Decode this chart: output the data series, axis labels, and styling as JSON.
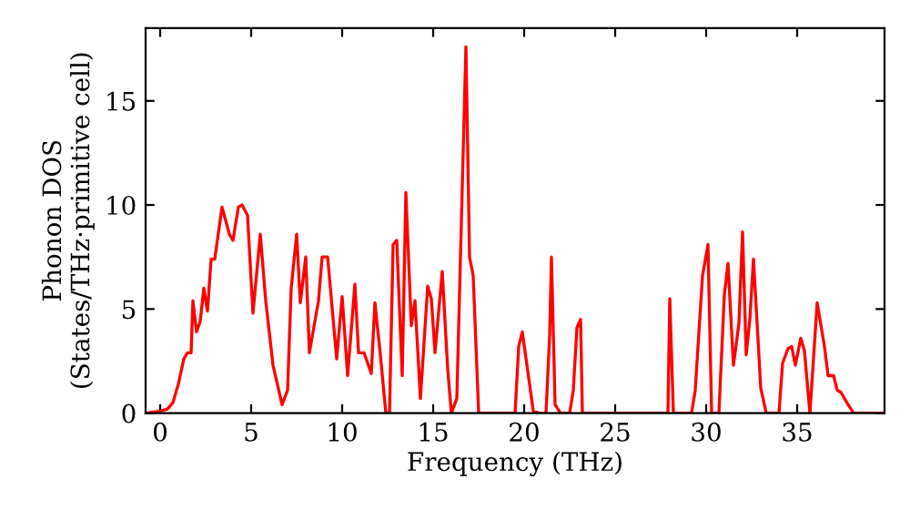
{
  "chart_data": {
    "type": "line",
    "xlabel": "Frequency (THz)",
    "ylabel": "Phonon DOS\n(States/THz·primitive cell)",
    "x": [
      -0.8,
      0,
      0.4,
      0.7,
      1.0,
      1.3,
      1.5,
      1.7,
      1.8,
      2.0,
      2.2,
      2.4,
      2.6,
      2.8,
      3.0,
      3.4,
      3.8,
      4.0,
      4.3,
      4.5,
      4.8,
      5.1,
      5.5,
      5.8,
      6.2,
      6.7,
      7.0,
      7.2,
      7.5,
      7.7,
      8.0,
      8.2,
      8.5,
      8.7,
      8.9,
      9.2,
      9.7,
      10.0,
      10.3,
      10.7,
      10.9,
      11.2,
      11.6,
      11.8,
      12.1,
      12.4,
      12.6,
      12.8,
      13.0,
      13.3,
      13.5,
      13.8,
      14.0,
      14.3,
      14.7,
      14.9,
      15.1,
      15.5,
      15.8,
      16.0,
      16.3,
      16.8,
      17.0,
      17.2,
      17.5,
      19.5,
      19.7,
      19.9,
      20.5,
      20.8,
      21.2,
      21.4,
      21.5,
      21.7,
      22.0,
      22.5,
      22.7,
      22.9,
      23.1,
      23.2,
      27.9,
      28.0,
      28.2,
      29.2,
      29.4,
      29.8,
      30.1,
      30.3,
      30.7,
      31.0,
      31.2,
      31.5,
      31.8,
      32.0,
      32.2,
      32.4,
      32.6,
      33.0,
      33.3,
      34.0,
      34.2,
      34.5,
      34.7,
      34.9,
      35.2,
      35.4,
      35.7,
      36.1,
      36.5,
      36.7,
      37.0,
      37.2,
      37.4,
      37.8,
      38.1,
      39.8
    ],
    "series": [
      {
        "color": "#ff0000",
        "values": [
          0,
          0.1,
          0.2,
          0.5,
          1.4,
          2.6,
          2.9,
          2.9,
          5.4,
          3.9,
          4.4,
          6.0,
          4.9,
          7.4,
          7.4,
          9.9,
          8.6,
          8.3,
          9.9,
          10.0,
          9.5,
          4.8,
          8.6,
          5.4,
          2.3,
          0.4,
          1.1,
          6.0,
          8.6,
          5.3,
          7.5,
          2.9,
          4.4,
          5.4,
          7.5,
          7.5,
          2.6,
          5.6,
          1.8,
          6.2,
          2.9,
          2.9,
          1.9,
          5.3,
          2.8,
          0,
          0,
          8.1,
          8.3,
          1.8,
          10.6,
          4.2,
          5.4,
          0.7,
          6.1,
          5.5,
          2.9,
          6.8,
          2.1,
          0,
          0.7,
          17.6,
          7.5,
          6.6,
          0,
          0,
          3.2,
          3.9,
          0.1,
          0,
          0,
          3.7,
          7.5,
          0.4,
          0,
          0,
          1.1,
          4.1,
          4.5,
          0,
          0,
          5.5,
          0,
          0,
          1.1,
          6.6,
          8.1,
          0,
          0,
          5.7,
          7.2,
          2.3,
          4.3,
          8.7,
          2.8,
          4.5,
          7.4,
          1.2,
          0,
          0,
          2.4,
          3.1,
          3.2,
          2.3,
          3.6,
          3.0,
          0,
          5.3,
          3.2,
          1.8,
          1.8,
          1.1,
          1.0,
          0.4,
          0,
          0
        ]
      }
    ],
    "xlim": [
      -0.8,
      39.8
    ],
    "ylim": [
      0,
      18.5
    ],
    "xticks": [
      0,
      5,
      10,
      15,
      20,
      25,
      30,
      35
    ],
    "yticks": [
      0,
      5,
      10,
      15
    ],
    "grid": false,
    "legend": false,
    "marker": "none",
    "line_style": "solid"
  }
}
